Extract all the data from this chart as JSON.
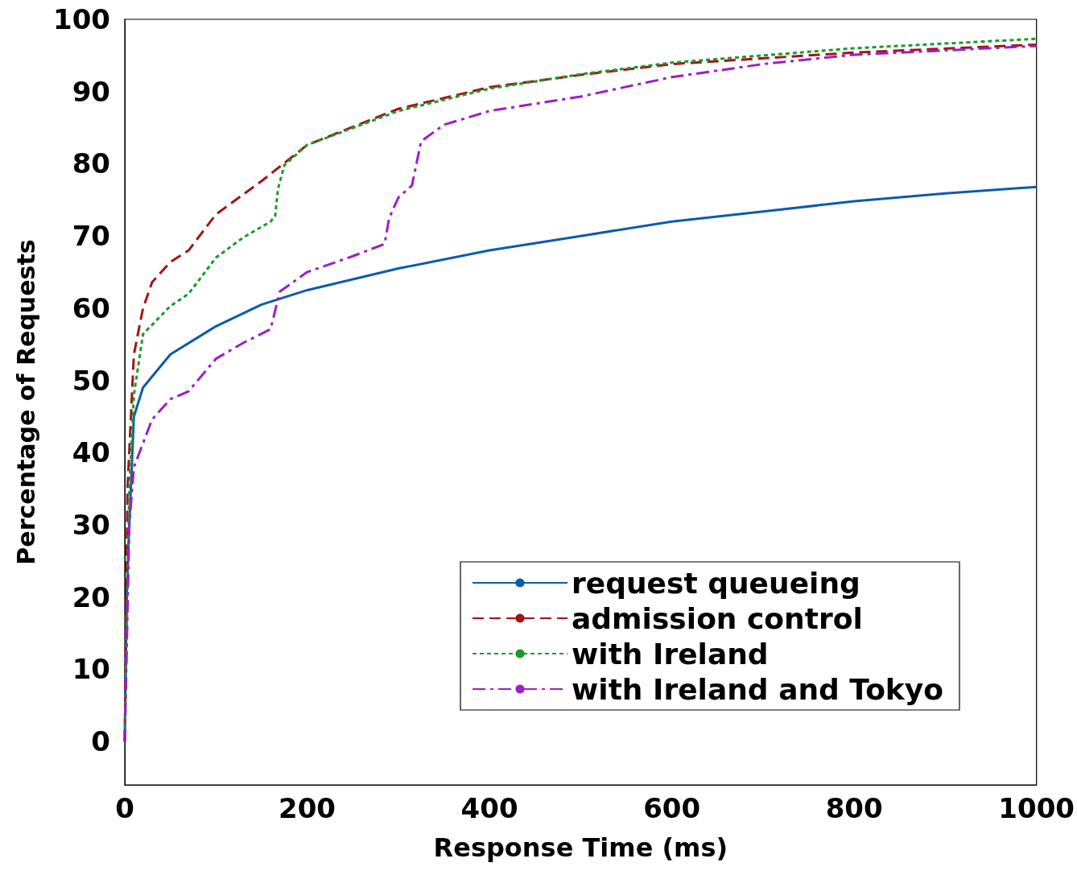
{
  "chart_data": {
    "type": "line",
    "xlabel": "Response Time (ms)",
    "ylabel": "Percentage of Requests",
    "xlim": [
      0,
      1000
    ],
    "xticks": [
      0,
      200,
      400,
      600,
      800,
      1000
    ],
    "ylim": [
      -6,
      100
    ],
    "yticks": [
      0,
      10,
      20,
      30,
      40,
      50,
      60,
      70,
      80,
      90,
      100
    ],
    "grid": false,
    "legend": "bottom right",
    "marker": "none",
    "series": [
      {
        "name": "request queueing",
        "color": "#0b5cad",
        "line_style": "solid",
        "x": [
          0,
          2,
          5,
          10,
          20,
          50,
          100,
          150,
          200,
          300,
          400,
          500,
          600,
          700,
          800,
          900,
          1000
        ],
        "values": [
          0,
          20,
          30,
          45,
          49,
          53.6,
          57.5,
          60.5,
          62.5,
          65.5,
          68,
          70,
          72,
          73.4,
          74.8,
          75.9,
          76.8
        ]
      },
      {
        "name": "admission control",
        "color": "#a31515",
        "line_style": "dashed",
        "x": [
          0,
          3,
          10,
          20,
          30,
          50,
          70,
          100,
          150,
          200,
          300,
          400,
          500,
          600,
          800,
          1000
        ],
        "values": [
          0,
          35,
          53.6,
          60,
          63.6,
          66.4,
          68,
          73,
          77.6,
          82.6,
          87.6,
          90.6,
          92.3,
          93.8,
          95.4,
          96.5
        ]
      },
      {
        "name": "with Ireland",
        "color": "#1a9a2a",
        "line_style": "dotted",
        "x": [
          0,
          5,
          10,
          20,
          50,
          70,
          100,
          130,
          160,
          165,
          168,
          175,
          200,
          300,
          400,
          500,
          600,
          800,
          1000
        ],
        "values": [
          0,
          35,
          48,
          56.4,
          60.3,
          62,
          67,
          69.8,
          72,
          72.8,
          76.5,
          79.8,
          82.6,
          87.3,
          90.4,
          92.4,
          94,
          96,
          97.3
        ]
      },
      {
        "name": "with Ireland and Tokyo",
        "color": "#9b1fc8",
        "line_style": "dashdot",
        "x": [
          0,
          5,
          10,
          20,
          30,
          50,
          70,
          100,
          130,
          160,
          165,
          170,
          200,
          250,
          285,
          290,
          300,
          315,
          325,
          350,
          400,
          500,
          600,
          700,
          800,
          1000
        ],
        "values": [
          0,
          30,
          38,
          41.3,
          44.6,
          47.4,
          48.5,
          53,
          55.2,
          57.1,
          59.7,
          62.3,
          65,
          67.2,
          68.9,
          72.5,
          75.3,
          77,
          83.1,
          85.4,
          87.3,
          89.3,
          92,
          93.8,
          95.1,
          96.3
        ]
      }
    ]
  }
}
